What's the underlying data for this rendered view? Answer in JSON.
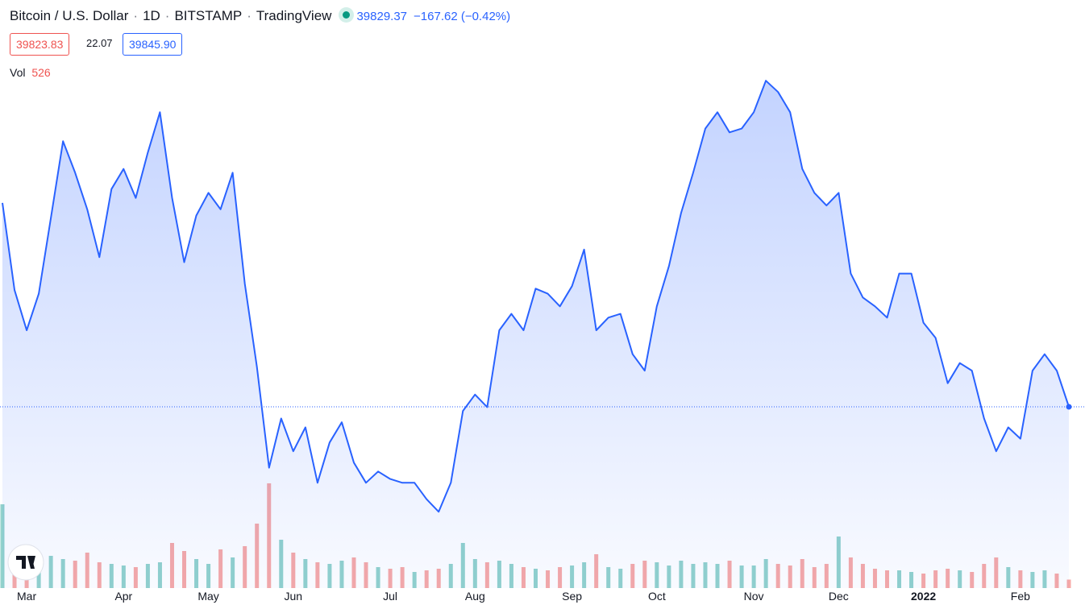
{
  "header": {
    "symbol": "Bitcoin / U.S. Dollar",
    "interval": "1D",
    "exchange": "BITSTAMP",
    "source": "TradingView",
    "last_price": 39829.37,
    "change": "−167.62 (−0.42%)",
    "bid": "39823.83",
    "spread": "22.07",
    "ask": "39845.90"
  },
  "chart_data": {
    "type": "line",
    "area": true,
    "ylim": [
      25450,
      72100
    ],
    "categories": [
      null,
      null,
      "Mar",
      null,
      null,
      null,
      null,
      null,
      null,
      null,
      "Apr",
      null,
      null,
      null,
      null,
      null,
      null,
      "May",
      null,
      null,
      null,
      null,
      null,
      null,
      "Jun",
      null,
      null,
      null,
      null,
      null,
      null,
      null,
      "Jul",
      null,
      null,
      null,
      null,
      null,
      null,
      "Aug",
      null,
      null,
      null,
      null,
      null,
      null,
      null,
      "Sep",
      null,
      null,
      null,
      null,
      null,
      null,
      "Oct",
      null,
      null,
      null,
      null,
      null,
      null,
      null,
      "Nov",
      null,
      null,
      null,
      null,
      null,
      null,
      "Dec",
      null,
      null,
      null,
      null,
      null,
      null,
      "2022",
      null,
      null,
      null,
      null,
      null,
      null,
      null,
      "Feb",
      null,
      null,
      null,
      null
    ],
    "series": [
      {
        "color": "#2962ff",
        "values": [
          56000,
          49100,
          45900,
          48800,
          54800,
          60900,
          58400,
          55500,
          51700,
          57100,
          58700,
          56400,
          60000,
          63200,
          56400,
          51300,
          55000,
          56800,
          55500,
          58400,
          49600,
          43000,
          35000,
          38900,
          36300,
          38200,
          33800,
          37000,
          38600,
          35400,
          33800,
          34700,
          34100,
          33800,
          33800,
          32500,
          31500,
          33800,
          39500,
          40800,
          39800,
          45900,
          47200,
          45900,
          49200,
          48800,
          47800,
          49400,
          52300,
          45900,
          46900,
          47200,
          44000,
          42700,
          47800,
          51000,
          55200,
          58400,
          61900,
          63200,
          61600,
          61900,
          63200,
          65700,
          64800,
          63200,
          58700,
          56800,
          55800,
          56800,
          50400,
          48500,
          47800,
          46900,
          50400,
          50400,
          46500,
          45300,
          41700,
          43300,
          42700,
          38900,
          36300,
          38200,
          37300,
          42700,
          44000,
          42700,
          39829.37
        ]
      }
    ],
    "volume": {
      "label": "Vol",
      "last": 526,
      "ylim": [
        0,
        36500
      ],
      "up_color": "#26a69a",
      "down_color": "#ef5350",
      "values": [
        5200,
        2100,
        1900,
        1500,
        2000,
        1800,
        1700,
        2200,
        1600,
        1500,
        1400,
        1300,
        1500,
        1600,
        2800,
        2300,
        1800,
        1500,
        2400,
        1900,
        2600,
        4000,
        6500,
        3000,
        2200,
        1800,
        1600,
        1500,
        1700,
        1900,
        1600,
        1300,
        1200,
        1300,
        1000,
        1100,
        1200,
        1500,
        2800,
        1800,
        1600,
        1700,
        1500,
        1300,
        1200,
        1100,
        1300,
        1400,
        1600,
        2100,
        1300,
        1200,
        1500,
        1700,
        1600,
        1400,
        1700,
        1500,
        1600,
        1500,
        1700,
        1400,
        1400,
        1800,
        1500,
        1400,
        1800,
        1300,
        1500,
        3200,
        1900,
        1500,
        1200,
        1100,
        1100,
        1000,
        900,
        1100,
        1200,
        1100,
        1000,
        1500,
        1900,
        1300,
        1100,
        1000,
        1100,
        900,
        526
      ]
    }
  }
}
